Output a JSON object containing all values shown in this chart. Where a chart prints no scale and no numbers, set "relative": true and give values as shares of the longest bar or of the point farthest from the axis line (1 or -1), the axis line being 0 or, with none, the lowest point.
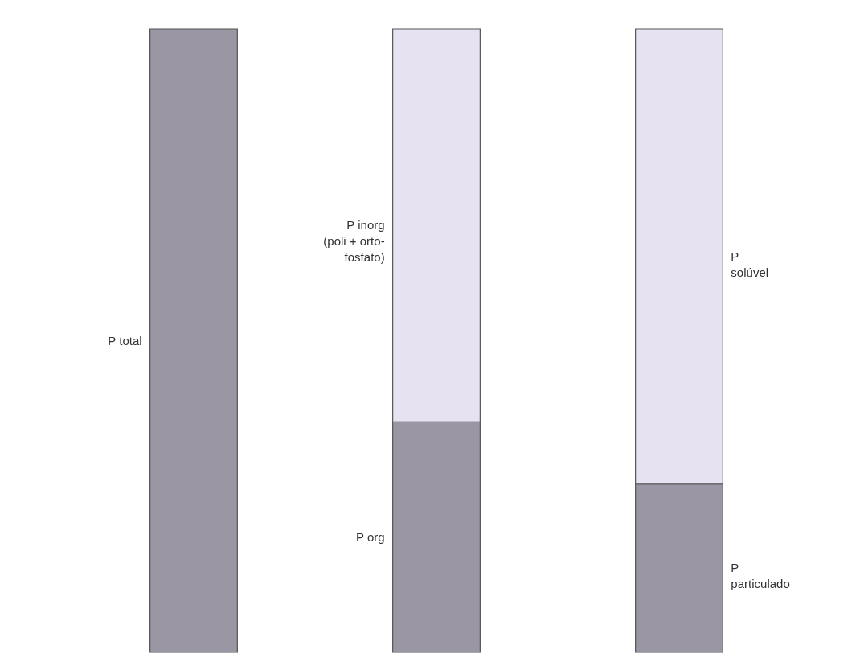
{
  "chart_data": {
    "type": "bar",
    "relative": true,
    "stacked": true,
    "categories": [
      null,
      null,
      null
    ],
    "series": [
      {
        "name": "P total",
        "color": "#9b96a3",
        "values": [
          1,
          null,
          null
        ]
      },
      {
        "name": "P org",
        "color": "#9b96a3",
        "values": [
          null,
          0.37,
          null
        ]
      },
      {
        "name": "P inorg\n(poli + orto-\nfosfato)",
        "color": "#e6e2f2",
        "values": [
          null,
          0.63,
          null
        ]
      },
      {
        "name": "P\nparticulado",
        "color": "#9b96a3",
        "values": [
          null,
          null,
          0.27
        ]
      },
      {
        "name": "P\nsolúvel",
        "color": "#e6e2f2",
        "values": [
          null,
          null,
          0.73
        ]
      }
    ],
    "legend": false
  }
}
